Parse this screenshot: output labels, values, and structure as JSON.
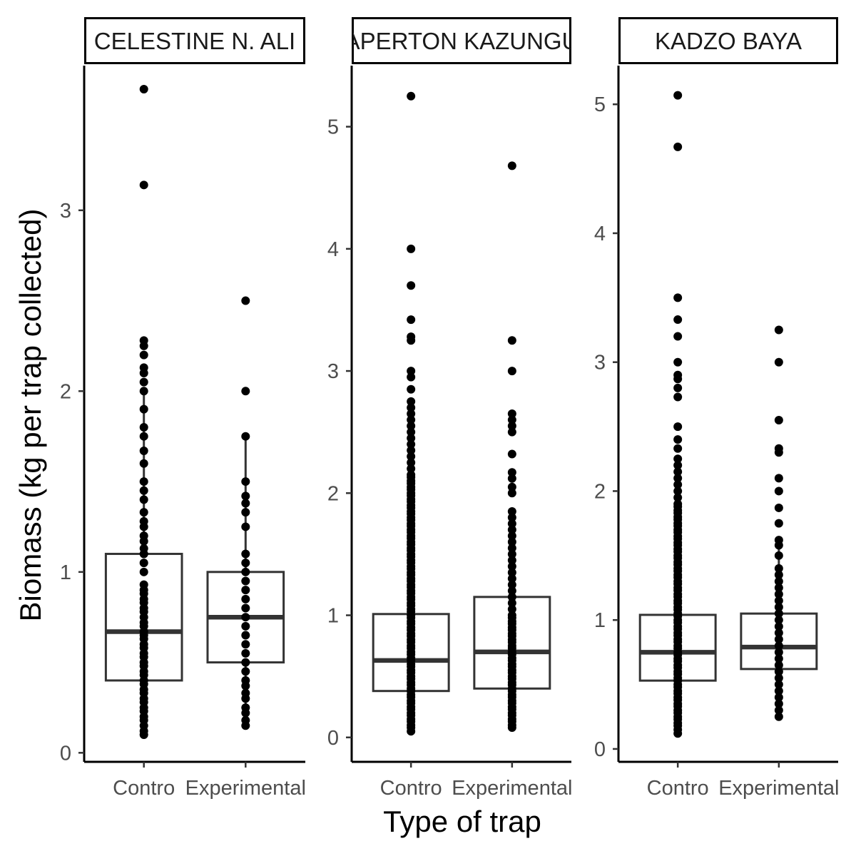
{
  "chart_data": {
    "type": "boxplot",
    "xlabel": "Type of trap",
    "ylabel": "Biomass (kg per trap collected)",
    "categories": [
      "Control",
      "Experimental"
    ],
    "category_labels_displayed": [
      "Contro",
      "Experimental"
    ],
    "grid": false,
    "legend": "none",
    "colors": {
      "box_stroke": "#333333",
      "point": "#000000",
      "axis": "#000000"
    },
    "panels": [
      {
        "strip_label": "CELESTINE N. ALI",
        "ylim": [
          -0.05,
          3.8
        ],
        "yticks": [
          0,
          1,
          2,
          3
        ],
        "boxes": [
          {
            "category": "Control",
            "q1": 0.4,
            "median": 0.67,
            "q3": 1.1,
            "whisker_low": 0.1,
            "whisker_high": 2.0,
            "points": [
              0.1,
              0.12,
              0.15,
              0.18,
              0.2,
              0.23,
              0.25,
              0.28,
              0.3,
              0.33,
              0.35,
              0.38,
              0.4,
              0.43,
              0.45,
              0.48,
              0.5,
              0.53,
              0.55,
              0.58,
              0.6,
              0.63,
              0.65,
              0.67,
              0.7,
              0.72,
              0.75,
              0.78,
              0.8,
              0.83,
              0.85,
              0.88,
              0.9,
              0.93,
              1.0,
              1.05,
              1.1,
              1.13,
              1.17,
              1.2,
              1.25,
              1.28,
              1.33,
              1.4,
              1.45,
              1.5,
              1.6,
              1.67,
              1.75,
              1.8,
              1.9,
              2.0,
              2.05,
              2.1,
              2.13,
              2.2,
              2.25,
              2.28,
              3.14,
              3.67
            ]
          },
          {
            "category": "Experimental",
            "q1": 0.5,
            "median": 0.75,
            "q3": 1.0,
            "whisker_low": 0.15,
            "whisker_high": 1.75,
            "points": [
              0.15,
              0.18,
              0.22,
              0.25,
              0.3,
              0.33,
              0.37,
              0.4,
              0.45,
              0.5,
              0.55,
              0.6,
              0.65,
              0.7,
              0.75,
              0.8,
              0.85,
              0.9,
              0.95,
              1.0,
              1.05,
              1.1,
              1.25,
              1.33,
              1.38,
              1.42,
              1.5,
              1.75,
              2.0,
              2.5
            ]
          }
        ]
      },
      {
        "strip_label": "APERTON KAZUNGU",
        "ylim": [
          -0.2,
          5.5
        ],
        "yticks": [
          0,
          1,
          2,
          3,
          4,
          5
        ],
        "boxes": [
          {
            "category": "Control",
            "q1": 0.38,
            "median": 0.63,
            "q3": 1.01,
            "whisker_low": 0.05,
            "whisker_high": 1.95,
            "points": [
              0.05,
              0.08,
              0.1,
              0.13,
              0.15,
              0.18,
              0.2,
              0.23,
              0.25,
              0.28,
              0.3,
              0.33,
              0.35,
              0.38,
              0.4,
              0.43,
              0.45,
              0.48,
              0.5,
              0.53,
              0.55,
              0.58,
              0.6,
              0.63,
              0.65,
              0.68,
              0.7,
              0.73,
              0.75,
              0.78,
              0.8,
              0.83,
              0.85,
              0.88,
              0.9,
              0.93,
              0.95,
              0.98,
              1.0,
              1.03,
              1.05,
              1.08,
              1.1,
              1.13,
              1.15,
              1.18,
              1.2,
              1.23,
              1.25,
              1.28,
              1.3,
              1.33,
              1.35,
              1.38,
              1.4,
              1.43,
              1.45,
              1.48,
              1.5,
              1.53,
              1.55,
              1.58,
              1.6,
              1.63,
              1.65,
              1.68,
              1.7,
              1.73,
              1.75,
              1.78,
              1.8,
              1.83,
              1.85,
              1.88,
              1.9,
              1.93,
              1.95,
              1.98,
              2.0,
              2.03,
              2.05,
              2.08,
              2.1,
              2.13,
              2.15,
              2.2,
              2.25,
              2.3,
              2.35,
              2.4,
              2.45,
              2.5,
              2.55,
              2.6,
              2.65,
              2.7,
              2.75,
              2.85,
              2.95,
              3.0,
              3.25,
              3.28,
              3.42,
              3.7,
              4.0,
              5.25
            ]
          },
          {
            "category": "Experimental",
            "q1": 0.4,
            "median": 0.7,
            "q3": 1.15,
            "whisker_low": 0.08,
            "whisker_high": 1.85,
            "points": [
              0.08,
              0.1,
              0.13,
              0.15,
              0.18,
              0.2,
              0.23,
              0.25,
              0.28,
              0.3,
              0.33,
              0.35,
              0.38,
              0.4,
              0.43,
              0.45,
              0.48,
              0.5,
              0.53,
              0.55,
              0.58,
              0.6,
              0.63,
              0.65,
              0.68,
              0.7,
              0.73,
              0.75,
              0.78,
              0.8,
              0.83,
              0.85,
              0.88,
              0.9,
              0.93,
              0.95,
              0.98,
              1.0,
              1.05,
              1.1,
              1.15,
              1.2,
              1.25,
              1.3,
              1.35,
              1.4,
              1.45,
              1.5,
              1.55,
              1.6,
              1.65,
              1.7,
              1.75,
              1.8,
              1.85,
              2.0,
              2.05,
              2.12,
              2.17,
              2.32,
              2.5,
              2.55,
              2.6,
              2.65,
              3.0,
              3.25,
              4.68
            ]
          }
        ]
      },
      {
        "strip_label": "KADZO BAYA",
        "ylim": [
          -0.1,
          5.3
        ],
        "yticks": [
          0,
          1,
          2,
          3,
          4,
          5
        ],
        "boxes": [
          {
            "category": "Control",
            "q1": 0.53,
            "median": 0.75,
            "q3": 1.04,
            "whisker_low": 0.12,
            "whisker_high": 1.8,
            "points": [
              0.12,
              0.15,
              0.18,
              0.2,
              0.23,
              0.25,
              0.28,
              0.3,
              0.33,
              0.35,
              0.38,
              0.4,
              0.43,
              0.45,
              0.48,
              0.5,
              0.53,
              0.55,
              0.58,
              0.6,
              0.63,
              0.65,
              0.68,
              0.7,
              0.73,
              0.75,
              0.78,
              0.8,
              0.83,
              0.85,
              0.88,
              0.9,
              0.93,
              0.95,
              0.98,
              1.0,
              1.03,
              1.05,
              1.08,
              1.1,
              1.13,
              1.15,
              1.18,
              1.2,
              1.23,
              1.25,
              1.28,
              1.3,
              1.33,
              1.35,
              1.38,
              1.4,
              1.43,
              1.45,
              1.48,
              1.5,
              1.53,
              1.55,
              1.58,
              1.6,
              1.63,
              1.65,
              1.68,
              1.7,
              1.73,
              1.75,
              1.78,
              1.8,
              1.83,
              1.85,
              1.88,
              1.9,
              1.95,
              2.0,
              2.05,
              2.1,
              2.15,
              2.2,
              2.25,
              2.33,
              2.4,
              2.5,
              2.73,
              2.8,
              2.87,
              2.9,
              3.0,
              3.2,
              3.33,
              3.5,
              4.67,
              5.07
            ]
          },
          {
            "category": "Experimental",
            "q1": 0.62,
            "median": 0.79,
            "q3": 1.05,
            "whisker_low": 0.25,
            "whisker_high": 1.6,
            "points": [
              0.25,
              0.3,
              0.35,
              0.4,
              0.45,
              0.5,
              0.55,
              0.6,
              0.65,
              0.7,
              0.75,
              0.8,
              0.85,
              0.9,
              0.95,
              1.0,
              1.05,
              1.1,
              1.15,
              1.2,
              1.25,
              1.3,
              1.35,
              1.4,
              1.5,
              1.58,
              1.62,
              1.75,
              1.87,
              2.0,
              2.1,
              2.3,
              2.33,
              2.55,
              3.0,
              3.25
            ]
          }
        ]
      }
    ]
  }
}
